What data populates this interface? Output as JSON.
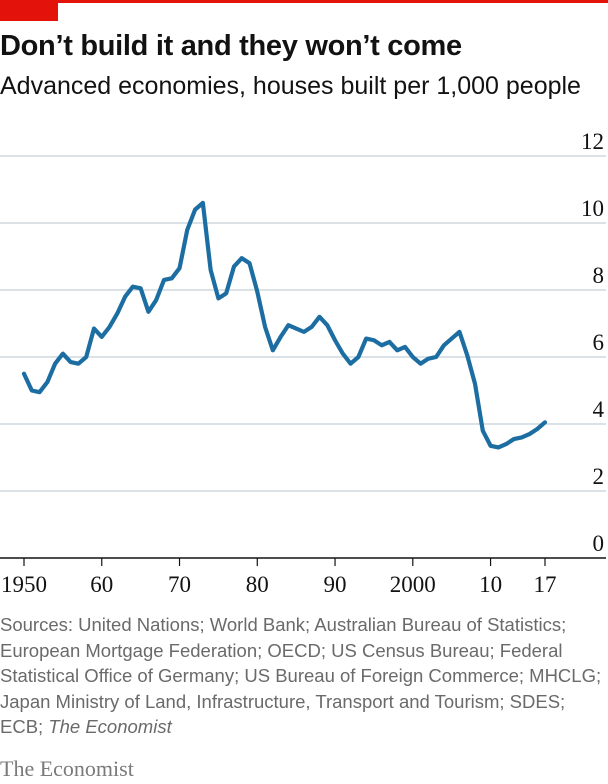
{
  "accent_color": "#e3120b",
  "line_color": "#1c6ea2",
  "chart_data": {
    "type": "line",
    "title": "Don’t build it and they won’t come",
    "subtitle": "Advanced economies, houses built per 1,000 people",
    "xlabel": "",
    "ylabel": "houses built per 1,000 people",
    "xlim": [
      1949,
      2021
    ],
    "ylim": [
      0,
      12
    ],
    "yticks": [
      0,
      2,
      4,
      6,
      8,
      10,
      12
    ],
    "xtick_values": [
      1950,
      1960,
      1970,
      1980,
      1990,
      2000,
      2010,
      2017
    ],
    "xtick_labels": [
      "1950",
      "60",
      "70",
      "80",
      "90",
      "2000",
      "10",
      "17"
    ],
    "grid": true,
    "series": [
      {
        "name": "Advanced economies",
        "x": [
          1950,
          1951,
          1952,
          1953,
          1954,
          1955,
          1956,
          1957,
          1958,
          1959,
          1960,
          1961,
          1962,
          1963,
          1964,
          1965,
          1966,
          1967,
          1968,
          1969,
          1970,
          1971,
          1972,
          1973,
          1974,
          1975,
          1976,
          1977,
          1978,
          1979,
          1980,
          1981,
          1982,
          1983,
          1984,
          1985,
          1986,
          1987,
          1988,
          1989,
          1990,
          1991,
          1992,
          1993,
          1994,
          1995,
          1996,
          1997,
          1998,
          1999,
          2000,
          2001,
          2002,
          2003,
          2004,
          2005,
          2006,
          2007,
          2008,
          2009,
          2010,
          2011,
          2012,
          2013,
          2014,
          2015,
          2016,
          2017
        ],
        "values": [
          5.5,
          5.0,
          4.95,
          5.25,
          5.8,
          6.1,
          5.85,
          5.8,
          6.0,
          6.85,
          6.6,
          6.9,
          7.3,
          7.8,
          8.1,
          8.05,
          7.35,
          7.7,
          8.3,
          8.35,
          8.65,
          9.8,
          10.4,
          10.6,
          8.6,
          7.75,
          7.9,
          8.7,
          8.95,
          8.8,
          7.95,
          6.9,
          6.2,
          6.6,
          6.95,
          6.85,
          6.75,
          6.9,
          7.2,
          6.95,
          6.5,
          6.1,
          5.8,
          6.0,
          6.55,
          6.5,
          6.35,
          6.45,
          6.2,
          6.3,
          6.0,
          5.8,
          5.95,
          6.0,
          6.35,
          6.55,
          6.75,
          6.05,
          5.2,
          3.8,
          3.35,
          3.3,
          3.4,
          3.55,
          3.6,
          3.7,
          3.85,
          4.05
        ]
      }
    ]
  },
  "sources": {
    "prefix": "Sources: United Nations; World Bank; Australian Bureau of Statistics; European Mortgage Federation; OECD; US Census Bureau; Federal Statistical Office of Germany; US Bureau of Foreign Commerce; MHCLG; Japan Ministry of Land, Infrastructure, Transport and Tourism; SDES; ECB; ",
    "publication": "The Economist"
  },
  "brand": "The Economist"
}
